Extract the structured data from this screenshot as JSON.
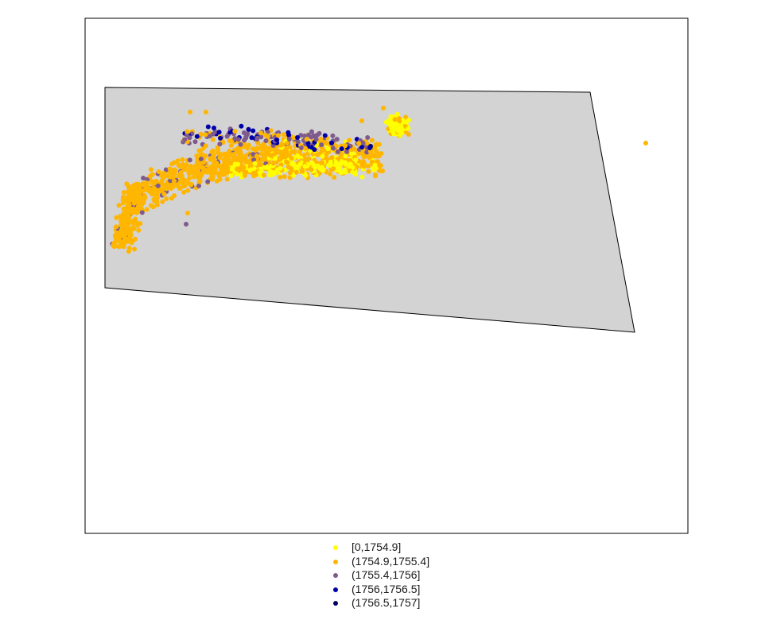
{
  "map": {
    "background_fill": "#d3d3d3",
    "border_color": "#000000"
  },
  "legend": {
    "items": [
      {
        "label": "[0,1754.9]",
        "color": "#ffff00"
      },
      {
        "label": "(1754.9,1755.4]",
        "color": "#ffb600"
      },
      {
        "label": "(1755.4,1756]",
        "color": "#7e5b8c"
      },
      {
        "label": "(1756,1756.5]",
        "color": "#0000a8"
      },
      {
        "label": "(1756.5,1757]",
        "color": "#000060"
      }
    ]
  }
}
